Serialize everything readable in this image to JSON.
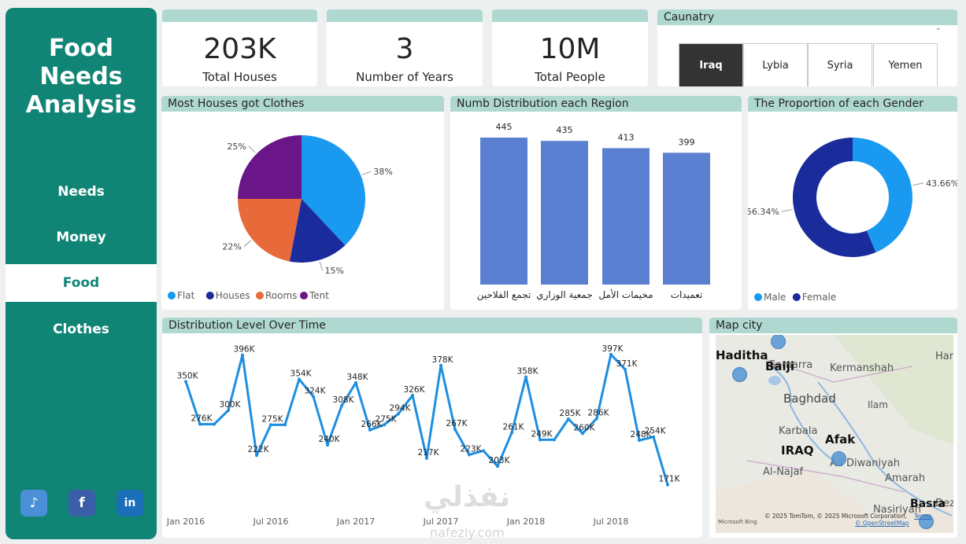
{
  "sidebar": {
    "title_lines": [
      "Food",
      "Needs",
      "Analysis"
    ],
    "nav": [
      "Needs",
      "Money",
      "Food",
      "Clothes"
    ],
    "active": "Food",
    "social": [
      "tiktok-icon",
      "facebook-icon",
      "linkedin-icon"
    ]
  },
  "kpis": [
    {
      "value": "203K",
      "label": "Total Houses"
    },
    {
      "value": "3",
      "label": "Number of Years"
    },
    {
      "value": "10M",
      "label": "Total People"
    }
  ],
  "country_slicer": {
    "title": "Caunatry",
    "options": [
      "Iraq",
      "Lybia",
      "Syria",
      "Yemen"
    ],
    "selected": "Iraq"
  },
  "clothes_card": {
    "title": "Most Houses got Clothes"
  },
  "region_card": {
    "title": "Numb Distribution each Region"
  },
  "gender_card": {
    "title": "The Proportion of each Gender"
  },
  "time_card": {
    "title": "Distribution Level Over Time"
  },
  "map_card": {
    "title": "Map city",
    "place_labels": [
      "Samarra",
      "Kermanshah",
      "Hame",
      "Baghdad",
      "Ilam",
      "Karbala",
      "Ad Diwaniyah",
      "Al-Najaf",
      "Amarah",
      "Nasiriyah",
      "Dezfu"
    ],
    "city_labels": [
      "Haditha",
      "Baiji",
      "Afak",
      "IRAQ",
      "Basra"
    ],
    "attribution": "© 2025 TomTom, © 2025 Microsoft Corporation,",
    "terms": "Terms",
    "osm": "© OpenStreetMap",
    "provider": "Microsoft Bing"
  },
  "watermark": {
    "arabic": "نفذلي",
    "latin": "nafezly.com"
  },
  "colors": {
    "accent": "#118575",
    "header": "#afd9d0",
    "bar": "#5b80d2",
    "line": "#1e8ee0"
  },
  "chart_data": [
    {
      "type": "pie",
      "title": "Most Houses got Clothes",
      "categories": [
        "Flat",
        "Houses",
        "Rooms",
        "Tent"
      ],
      "values": [
        38,
        15,
        22,
        25
      ],
      "labels": [
        "38%",
        "15%",
        "22%",
        "25%"
      ],
      "colors": [
        "#1a99f0",
        "#1a2c9c",
        "#e8693a",
        "#6b1688"
      ],
      "legend": "bottom-left"
    },
    {
      "type": "bar",
      "title": "Numb Distribution each Region",
      "categories": [
        "تجمع الفلاحين",
        "جمعية الوزاري",
        "مخيمات الأمل",
        "تعميدات"
      ],
      "values": [
        445,
        435,
        413,
        399
      ],
      "ylim": [
        0,
        445
      ]
    },
    {
      "type": "pie",
      "subtype": "donut",
      "title": "The Proportion of each Gender",
      "categories": [
        "Male",
        "Female"
      ],
      "values": [
        43.66,
        56.34
      ],
      "labels": [
        "43.66%",
        "56.34%"
      ],
      "colors": [
        "#1a99f0",
        "#1a2c9c"
      ],
      "legend": "bottom-left"
    },
    {
      "type": "line",
      "title": "Distribution Level Over Time",
      "x": [
        "2016-01",
        "2016-02",
        "2016-03",
        "2016-04",
        "2016-05",
        "2016-06",
        "2016-07",
        "2016-08",
        "2016-09",
        "2016-10",
        "2016-11",
        "2016-12",
        "2017-01",
        "2017-02",
        "2017-03",
        "2017-04",
        "2017-05",
        "2017-06",
        "2017-07",
        "2017-08",
        "2017-09",
        "2017-10",
        "2017-11",
        "2017-12",
        "2018-01",
        "2018-02",
        "2018-03",
        "2018-04",
        "2018-05",
        "2018-06",
        "2018-07",
        "2018-08",
        "2018-09",
        "2018-10",
        "2018-11",
        "2018-12"
      ],
      "values": [
        350,
        276,
        276,
        300,
        396,
        222,
        275,
        275,
        354,
        324,
        240,
        308,
        348,
        266,
        275,
        294,
        326,
        217,
        378,
        267,
        223,
        230,
        203,
        261,
        358,
        249,
        249,
        285,
        260,
        286,
        397,
        371,
        248,
        254,
        171,
        null
      ],
      "labels": [
        "350K",
        "276K",
        "",
        "300K",
        "396K",
        "222K",
        "275K",
        "",
        "354K",
        "324K",
        "240K",
        "308K",
        "348K",
        "266K",
        "275K",
        "294K",
        "326K",
        "217K",
        "378K",
        "267K",
        "223K",
        "",
        "203K",
        "261K",
        "358K",
        "249K",
        "",
        "285K",
        "260K",
        "286K",
        "397K",
        "371K",
        "248K",
        "254K",
        "171K",
        ""
      ],
      "x_ticks": [
        "Jan 2016",
        "Jul 2016",
        "Jan 2017",
        "Jul 2017",
        "Jan 2018",
        "Jul 2018"
      ],
      "ylim": [
        150,
        420
      ]
    }
  ]
}
